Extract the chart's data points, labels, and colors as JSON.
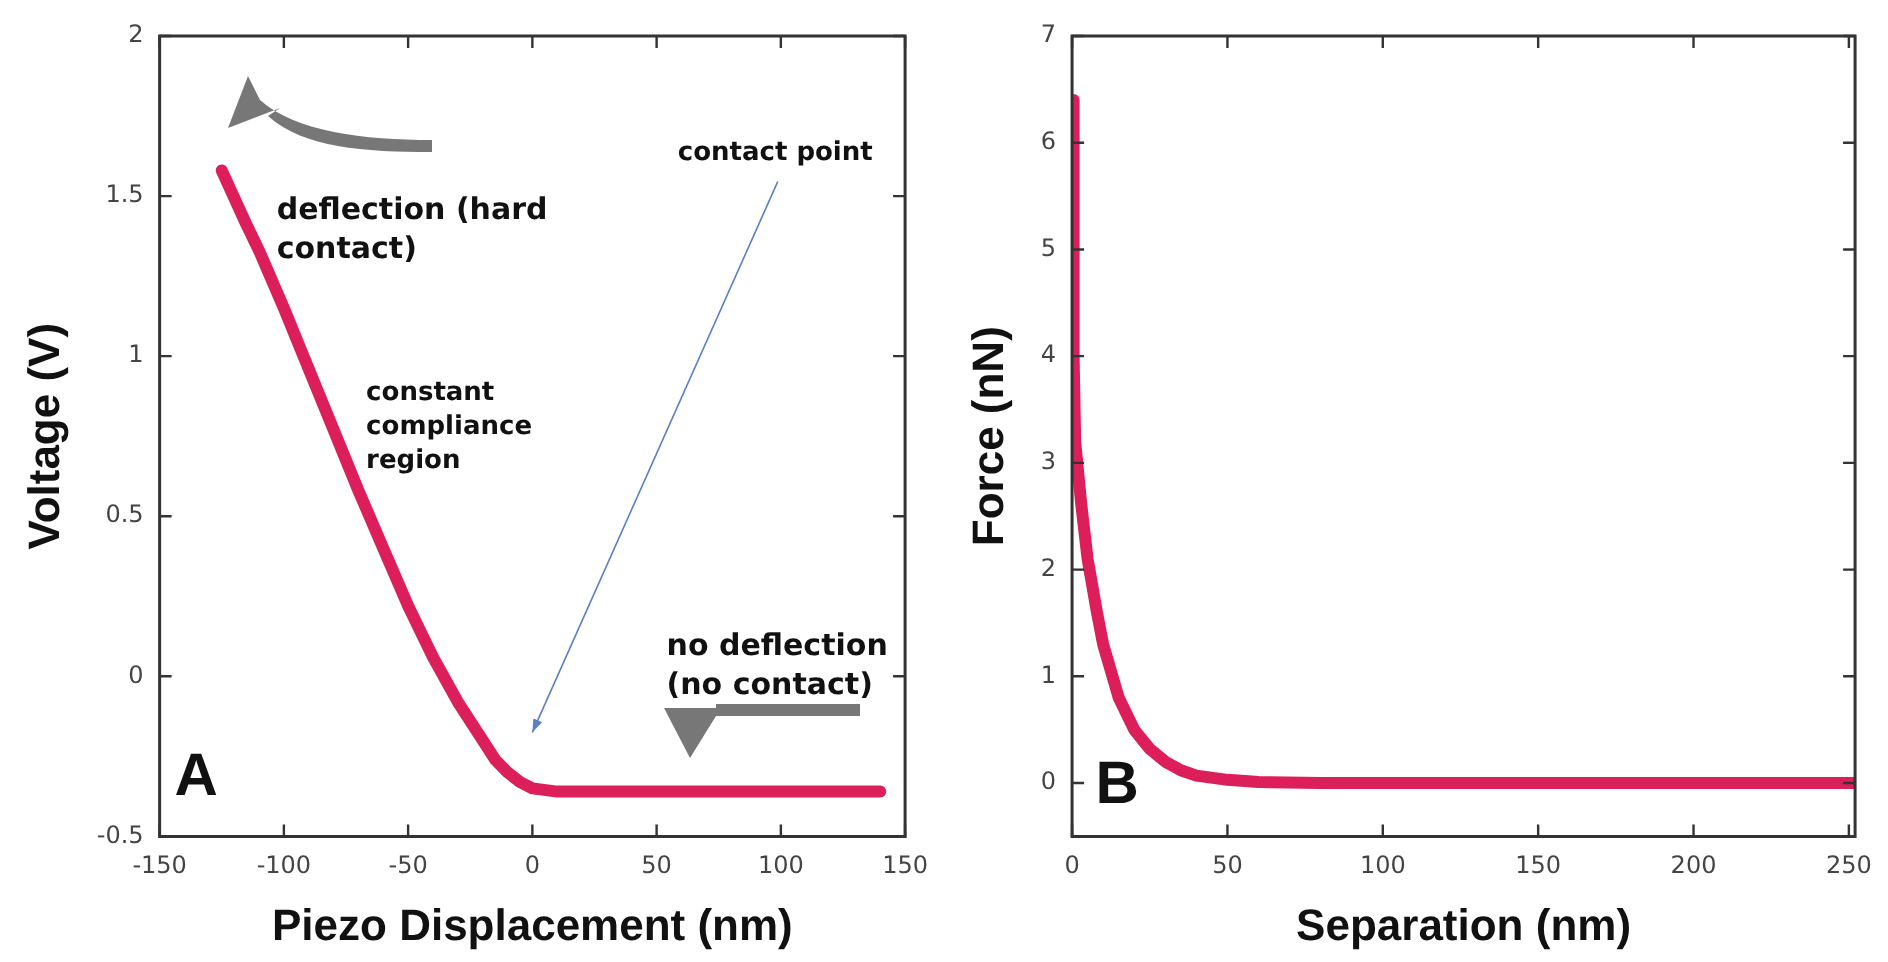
{
  "chart_data": [
    {
      "type": "line",
      "xlabel": "Piezo Displacement (nm)",
      "ylabel": "Voltage (V)",
      "xlim": [
        -150,
        150
      ],
      "xticks": [
        -150,
        -100,
        -50,
        0,
        50,
        100,
        150
      ],
      "ylim": [
        -0.5,
        2
      ],
      "yticks": [
        -0.5,
        0,
        0.5,
        1,
        1.5,
        2
      ],
      "grid": false,
      "series": [
        {
          "color": "#dc1f5a",
          "x": [
            -125,
            -115,
            -110,
            -100,
            -90,
            -80,
            -70,
            -60,
            -50,
            -40,
            -30,
            -20,
            -15,
            -10,
            -5,
            0,
            10,
            20,
            40,
            60,
            80,
            100,
            120,
            140
          ],
          "values": [
            1.58,
            1.41,
            1.33,
            1.15,
            0.96,
            0.77,
            0.58,
            0.4,
            0.22,
            0.06,
            -0.08,
            -0.2,
            -0.26,
            -0.3,
            -0.33,
            -0.35,
            -0.36,
            -0.36,
            -0.36,
            -0.36,
            -0.36,
            -0.36,
            -0.36,
            -0.36
          ]
        }
      ],
      "annotations": [
        "deflection (hard contact)",
        "constant compliance region",
        "contact point",
        "no deflection (no contact)",
        "A"
      ]
    },
    {
      "type": "line",
      "xlabel": "Separation (nm)",
      "ylabel": "Force (nN)",
      "xlim": [
        0,
        252
      ],
      "xticks": [
        0,
        50,
        100,
        150,
        200,
        250
      ],
      "ylim": [
        -0.5,
        7
      ],
      "yticks": [
        0,
        1,
        2,
        3,
        4,
        5,
        6,
        7
      ],
      "grid": false,
      "series": [
        {
          "color": "#dc1f5a",
          "x": [
            0,
            0.5,
            1,
            3,
            5,
            8,
            10,
            15,
            20,
            25,
            30,
            35,
            40,
            50,
            60,
            80,
            120,
            160,
            200,
            252
          ],
          "values": [
            6.4,
            4,
            3.2,
            2.6,
            2.1,
            1.6,
            1.3,
            0.8,
            0.5,
            0.32,
            0.2,
            0.12,
            0.07,
            0.03,
            0.01,
            0,
            0,
            0,
            0,
            0
          ]
        }
      ],
      "annotations": [
        "B"
      ]
    }
  ]
}
